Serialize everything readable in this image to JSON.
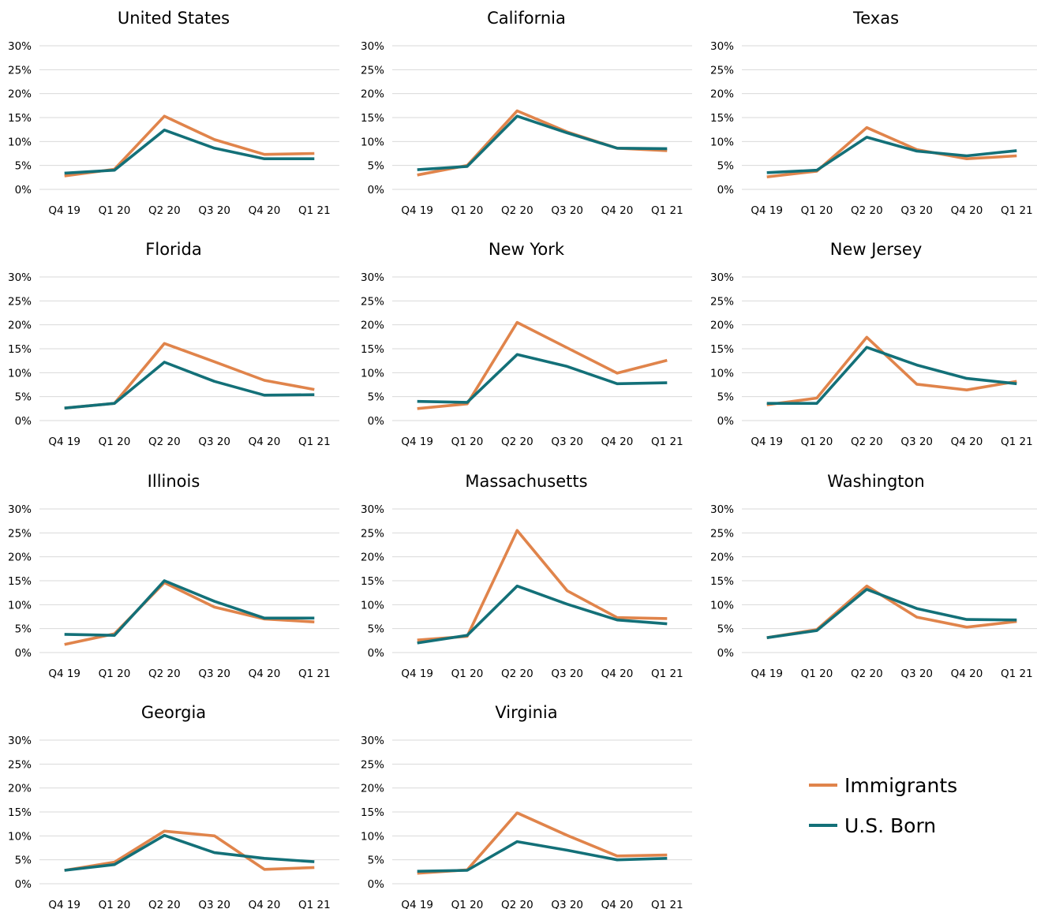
{
  "colors": {
    "immigrants": "#E0844B",
    "us_born": "#137078",
    "grid": "#D9D9D9",
    "text": "#000000"
  },
  "legend": {
    "immigrants_label": "Immigrants",
    "us_born_label": "U.S. Born",
    "placement": "bottom-right"
  },
  "chart_data": [
    {
      "type": "line",
      "title": "United States",
      "categories": [
        "Q4 19",
        "Q1 20",
        "Q2 20",
        "Q3 20",
        "Q4 20",
        "Q1 21"
      ],
      "y_ticks": [
        "30%",
        "25%",
        "20%",
        "15%",
        "10%",
        "5%",
        "0%"
      ],
      "ylim": [
        0,
        30
      ],
      "grid": true,
      "series": [
        {
          "name": "Immigrants",
          "values": [
            2.8,
            4.2,
            15.3,
            10.4,
            7.3,
            7.5
          ]
        },
        {
          "name": "U.S. Born",
          "values": [
            3.4,
            4.0,
            12.4,
            8.6,
            6.4,
            6.4
          ]
        }
      ]
    },
    {
      "type": "line",
      "title": "California",
      "categories": [
        "Q4 19",
        "Q1 20",
        "Q2 20",
        "Q3 20",
        "Q4 20",
        "Q1 21"
      ],
      "y_ticks": [
        "30%",
        "25%",
        "20%",
        "15%",
        "10%",
        "5%",
        "0%"
      ],
      "ylim": [
        0,
        30
      ],
      "grid": true,
      "series": [
        {
          "name": "Immigrants",
          "values": [
            3.0,
            5.0,
            16.4,
            12.0,
            8.6,
            8.1
          ]
        },
        {
          "name": "U.S. Born",
          "values": [
            4.1,
            4.8,
            15.3,
            11.8,
            8.6,
            8.5
          ]
        }
      ]
    },
    {
      "type": "line",
      "title": "Texas",
      "categories": [
        "Q4 19",
        "Q1 20",
        "Q2 20",
        "Q3 20",
        "Q4 20",
        "Q1 21"
      ],
      "y_ticks": [
        "30%",
        "25%",
        "20%",
        "15%",
        "10%",
        "5%",
        "0%"
      ],
      "ylim": [
        0,
        30
      ],
      "grid": true,
      "series": [
        {
          "name": "Immigrants",
          "values": [
            2.6,
            3.8,
            12.9,
            8.3,
            6.4,
            7.0
          ]
        },
        {
          "name": "U.S. Born",
          "values": [
            3.5,
            4.0,
            10.9,
            8.0,
            7.0,
            8.1
          ]
        }
      ]
    },
    {
      "type": "line",
      "title": "Florida",
      "categories": [
        "Q4 19",
        "Q1 20",
        "Q2 20",
        "Q3 20",
        "Q4 20",
        "Q1 21"
      ],
      "y_ticks": [
        "30%",
        "25%",
        "20%",
        "15%",
        "10%",
        "5%",
        "0%"
      ],
      "ylim": [
        0,
        30
      ],
      "grid": true,
      "series": [
        {
          "name": "Immigrants",
          "values": [
            2.6,
            3.6,
            16.1,
            12.3,
            8.4,
            6.5
          ]
        },
        {
          "name": "U.S. Born",
          "values": [
            2.6,
            3.6,
            12.2,
            8.2,
            5.3,
            5.4
          ]
        }
      ]
    },
    {
      "type": "line",
      "title": "New York",
      "categories": [
        "Q4 19",
        "Q1 20",
        "Q2 20",
        "Q3 20",
        "Q4 20",
        "Q1 21"
      ],
      "y_ticks": [
        "30%",
        "25%",
        "20%",
        "15%",
        "10%",
        "5%",
        "0%"
      ],
      "ylim": [
        0,
        30
      ],
      "grid": true,
      "series": [
        {
          "name": "Immigrants",
          "values": [
            2.5,
            3.5,
            20.5,
            15.2,
            9.9,
            12.6
          ]
        },
        {
          "name": "U.S. Born",
          "values": [
            4.0,
            3.8,
            13.8,
            11.3,
            7.7,
            7.9
          ]
        }
      ]
    },
    {
      "type": "line",
      "title": "New Jersey",
      "categories": [
        "Q4 19",
        "Q1 20",
        "Q2 20",
        "Q3 20",
        "Q4 20",
        "Q1 21"
      ],
      "y_ticks": [
        "30%",
        "25%",
        "20%",
        "15%",
        "10%",
        "5%",
        "0%"
      ],
      "ylim": [
        0,
        30
      ],
      "grid": true,
      "series": [
        {
          "name": "Immigrants",
          "values": [
            3.3,
            4.7,
            17.4,
            7.6,
            6.4,
            8.2
          ]
        },
        {
          "name": "U.S. Born",
          "values": [
            3.6,
            3.6,
            15.3,
            11.6,
            8.8,
            7.7
          ]
        }
      ]
    },
    {
      "type": "line",
      "title": "Illinois",
      "categories": [
        "Q4 19",
        "Q1 20",
        "Q2 20",
        "Q3 20",
        "Q4 20",
        "Q1 21"
      ],
      "y_ticks": [
        "30%",
        "25%",
        "20%",
        "15%",
        "10%",
        "5%",
        "0%"
      ],
      "ylim": [
        0,
        30
      ],
      "grid": true,
      "series": [
        {
          "name": "Immigrants",
          "values": [
            1.7,
            3.9,
            14.6,
            9.5,
            7.0,
            6.4
          ]
        },
        {
          "name": "U.S. Born",
          "values": [
            3.8,
            3.6,
            15.0,
            10.7,
            7.2,
            7.2
          ]
        }
      ]
    },
    {
      "type": "line",
      "title": "Massachusetts",
      "categories": [
        "Q4 19",
        "Q1 20",
        "Q2 20",
        "Q3 20",
        "Q4 20",
        "Q1 21"
      ],
      "y_ticks": [
        "30%",
        "25%",
        "20%",
        "15%",
        "10%",
        "5%",
        "0%"
      ],
      "ylim": [
        0,
        30
      ],
      "grid": true,
      "series": [
        {
          "name": "Immigrants",
          "values": [
            2.6,
            3.4,
            25.5,
            12.9,
            7.3,
            7.1
          ]
        },
        {
          "name": "U.S. Born",
          "values": [
            2.0,
            3.6,
            13.9,
            10.1,
            6.8,
            6.0
          ]
        }
      ]
    },
    {
      "type": "line",
      "title": "Washington",
      "categories": [
        "Q4 19",
        "Q1 20",
        "Q2 20",
        "Q3 20",
        "Q4 20",
        "Q1 21"
      ],
      "y_ticks": [
        "30%",
        "25%",
        "20%",
        "15%",
        "10%",
        "5%",
        "0%"
      ],
      "ylim": [
        0,
        30
      ],
      "grid": true,
      "series": [
        {
          "name": "Immigrants",
          "values": [
            3.1,
            4.8,
            13.9,
            7.4,
            5.3,
            6.5
          ]
        },
        {
          "name": "U.S. Born",
          "values": [
            3.1,
            4.6,
            13.2,
            9.2,
            6.9,
            6.8
          ]
        }
      ]
    },
    {
      "type": "line",
      "title": "Georgia",
      "categories": [
        "Q4 19",
        "Q1 20",
        "Q2 20",
        "Q3 20",
        "Q4 20",
        "Q1 21"
      ],
      "y_ticks": [
        "30%",
        "25%",
        "20%",
        "15%",
        "10%",
        "5%",
        "0%"
      ],
      "ylim": [
        0,
        30
      ],
      "grid": true,
      "series": [
        {
          "name": "Immigrants",
          "values": [
            2.8,
            4.5,
            11.0,
            10.0,
            3.0,
            3.4
          ]
        },
        {
          "name": "U.S. Born",
          "values": [
            2.8,
            4.0,
            10.1,
            6.5,
            5.3,
            4.6
          ]
        }
      ]
    },
    {
      "type": "line",
      "title": "Virginia",
      "categories": [
        "Q4 19",
        "Q1 20",
        "Q2 20",
        "Q3 20",
        "Q4 20",
        "Q1 21"
      ],
      "y_ticks": [
        "30%",
        "25%",
        "20%",
        "15%",
        "10%",
        "5%",
        "0%"
      ],
      "ylim": [
        0,
        30
      ],
      "grid": true,
      "series": [
        {
          "name": "Immigrants",
          "values": [
            2.2,
            2.9,
            14.8,
            10.1,
            5.8,
            6.0
          ]
        },
        {
          "name": "U.S. Born",
          "values": [
            2.6,
            2.8,
            8.8,
            7.0,
            5.0,
            5.3
          ]
        }
      ]
    }
  ]
}
